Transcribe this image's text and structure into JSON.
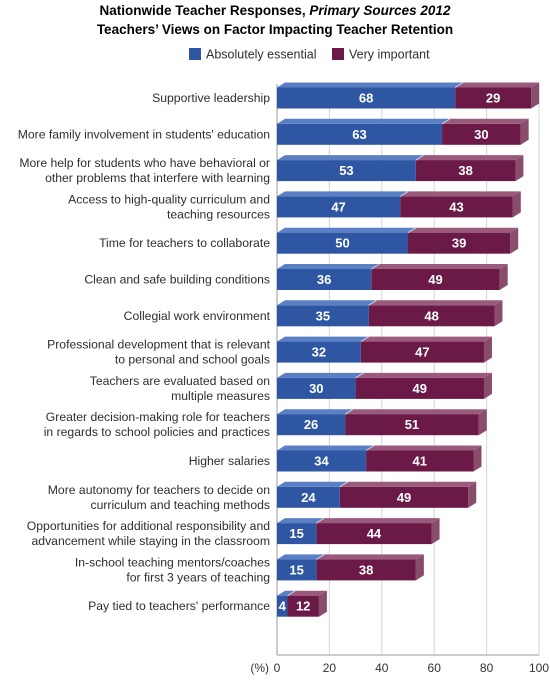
{
  "header": {
    "title_prefix": "Nationwide Teacher Responses, ",
    "title_italic": "Primary Sources 2012",
    "subtitle": "Teachers’ Views on Factor Impacting Teacher Retention"
  },
  "colors": {
    "essential_front": "#2e56a2",
    "essential_top": "#5b7fc4",
    "very_front": "#6b1a48",
    "very_top": "#9a5a7c",
    "very_side": "#8a4c6c",
    "axis": "#999999",
    "grid": "#d4d4d4"
  },
  "chart_data": {
    "type": "bar",
    "orientation": "horizontal",
    "stacked": true,
    "legend_position": "top",
    "x_axis_unit_label": "(%)",
    "xlim": [
      0,
      100
    ],
    "x_ticks": [
      0,
      20,
      40,
      60,
      80,
      100
    ],
    "grid": true,
    "categories": [
      [
        "Supportive leadership"
      ],
      [
        "More family involvement in students' education"
      ],
      [
        "More help for students who have behavioral or",
        "other problems that interfere with learning"
      ],
      [
        "Access to high-quality curriculum and",
        "teaching resources"
      ],
      [
        "Time for teachers to collaborate"
      ],
      [
        "Clean and safe building conditions"
      ],
      [
        "Collegial work environment"
      ],
      [
        "Professional development that is relevant",
        "to personal and school goals"
      ],
      [
        "Teachers are evaluated based on",
        "multiple measures"
      ],
      [
        "Greater decision-making role for teachers",
        "in regards to school policies and practices"
      ],
      [
        "Higher salaries"
      ],
      [
        "More autonomy for teachers to decide on",
        "curriculum and teaching methods"
      ],
      [
        "Opportunities for additional responsibility and",
        "advancement while staying in the classroom"
      ],
      [
        "In-school teaching mentors/coaches",
        "for first 3 years of teaching"
      ],
      [
        "Pay tied to teachers' performance"
      ]
    ],
    "series": [
      {
        "name": "Absolutely essential",
        "values": [
          68,
          63,
          53,
          47,
          50,
          36,
          35,
          32,
          30,
          26,
          34,
          24,
          15,
          15,
          4
        ]
      },
      {
        "name": "Very important",
        "values": [
          29,
          30,
          38,
          43,
          39,
          49,
          48,
          47,
          49,
          51,
          41,
          49,
          44,
          38,
          12
        ]
      }
    ]
  }
}
